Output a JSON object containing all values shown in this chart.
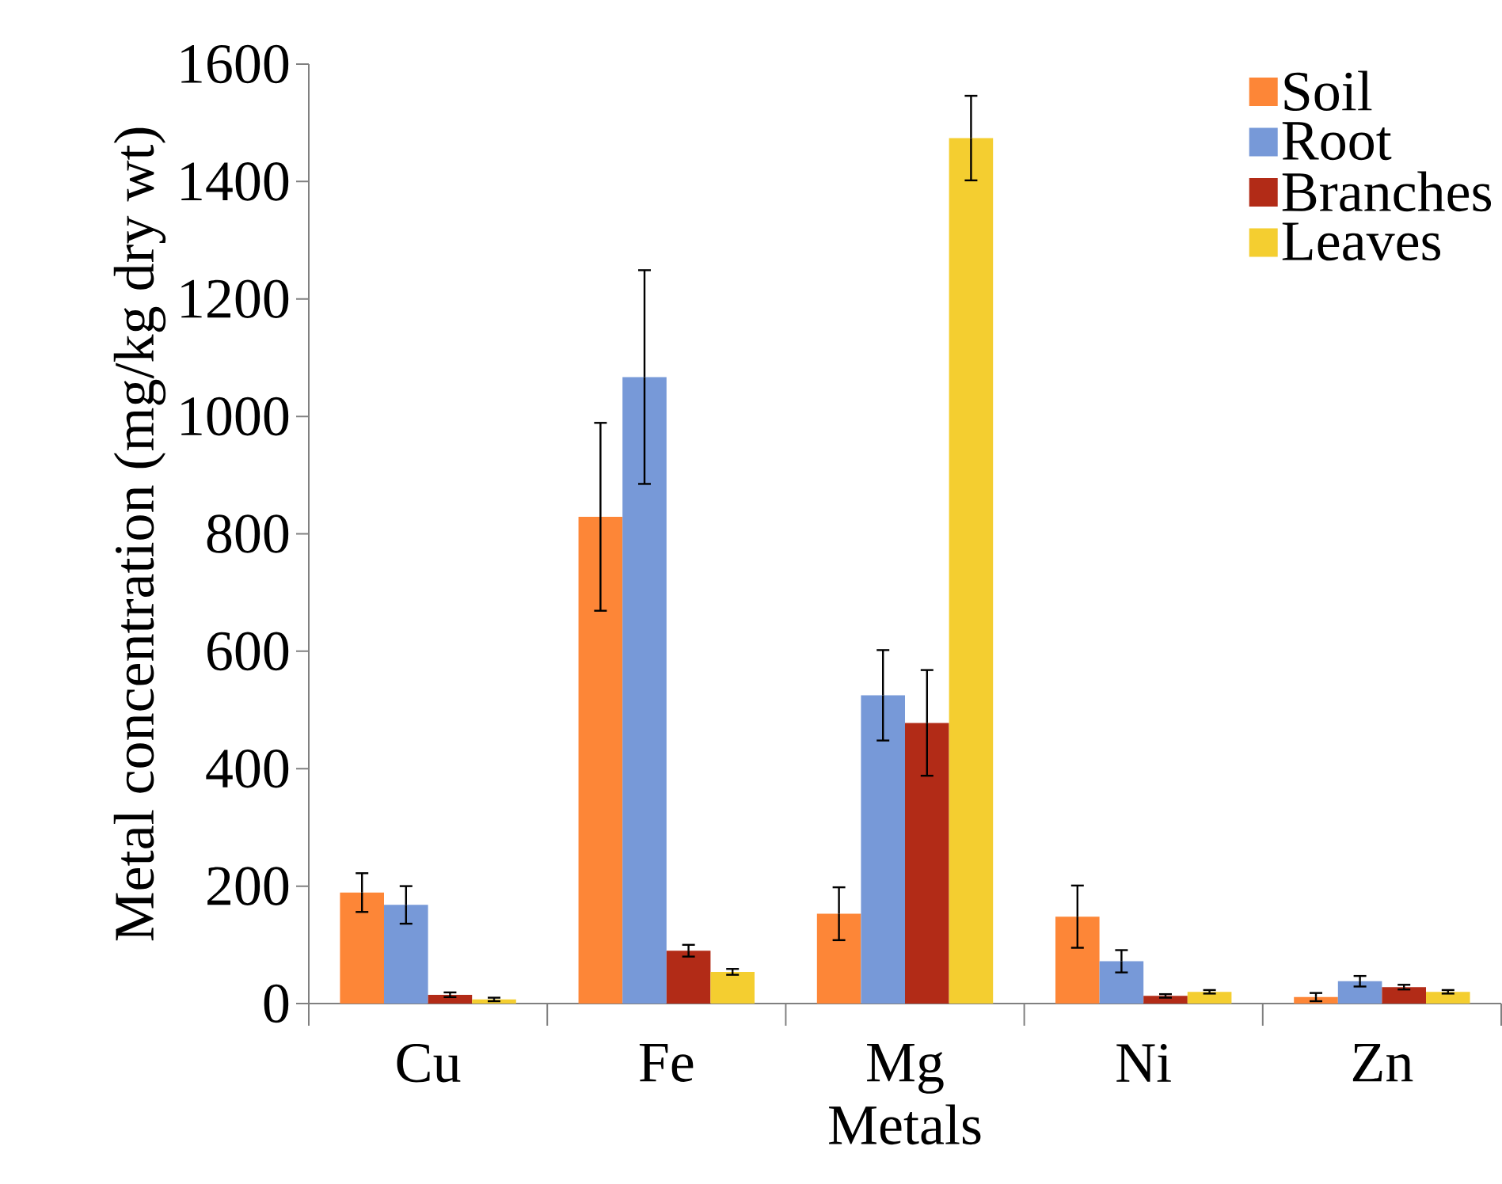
{
  "chart_data": {
    "type": "bar",
    "xlabel": "Metals",
    "ylabel": "Metal concentration (mg/kg dry wt)",
    "categories": [
      "Cu",
      "Fe",
      "Mg",
      "Ni",
      "Zn"
    ],
    "series": [
      {
        "name": "Soil",
        "color": "#fd8637",
        "values": [
          189,
          829,
          153,
          148,
          11
        ],
        "errors": [
          33,
          160,
          45,
          53,
          7
        ]
      },
      {
        "name": "Root",
        "color": "#7799d8",
        "values": [
          168,
          1067,
          525,
          72,
          38
        ],
        "errors": [
          32,
          182,
          77,
          19,
          9
        ]
      },
      {
        "name": "Branches",
        "color": "#b22b17",
        "values": [
          15,
          90,
          478,
          13,
          28
        ],
        "errors": [
          4,
          10,
          90,
          3,
          4
        ]
      },
      {
        "name": "Leaves",
        "color": "#f4ce30",
        "values": [
          7,
          54,
          1474,
          20,
          20
        ],
        "errors": [
          3,
          5,
          72,
          3,
          3
        ]
      }
    ],
    "ylim": [
      0,
      1600
    ],
    "yticks": [
      0,
      200,
      400,
      600,
      800,
      1000,
      1200,
      1400,
      1600
    ],
    "legend": "top right"
  }
}
